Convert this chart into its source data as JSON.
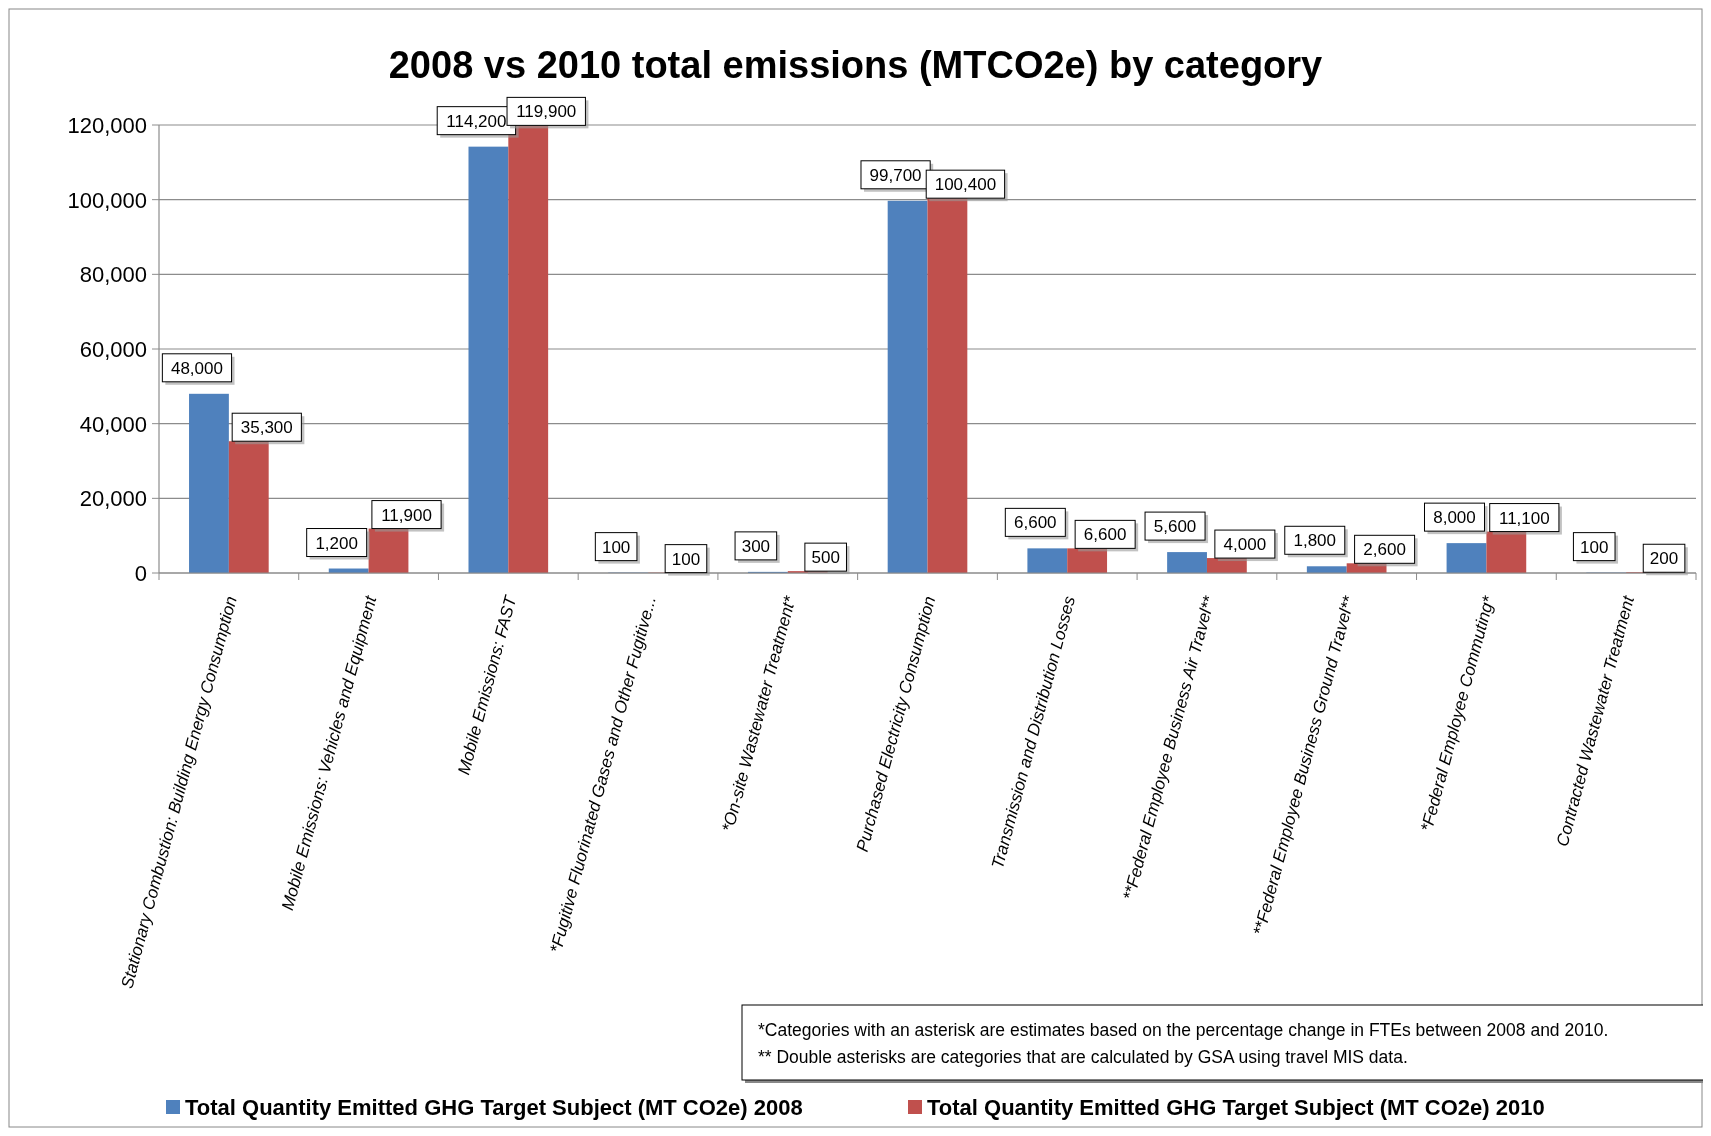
{
  "chart_data": {
    "type": "bar",
    "title": "2008 vs 2010 total emissions (MTCO2e) by category",
    "categories": [
      "Stationary Combustion: Building Energy Consumption",
      "Mobile Emissions: Vehicles and Equipment",
      "Mobile Emissions: FAST",
      "*Fugitive Fluorinated Gases and Other Fugitive...",
      "*On-site Wastewater Treatment*",
      "Purchased Electricity Consumption",
      "Transmission and Distribution Losses",
      "**Federal Employee Business Air Travel**",
      "**Federal Employee Business Ground Travel**",
      "*Federal Employee Commuting*",
      "Contracted Wastewater Treatment"
    ],
    "series": [
      {
        "name": "Total Quantity Emitted GHG Target Subject (MT CO2e) 2008",
        "color": "#4f81bd",
        "values": [
          48000,
          1200,
          114200,
          100,
          300,
          99700,
          6600,
          5600,
          1800,
          8000,
          100
        ],
        "value_labels": [
          "48,000",
          "1,200",
          "114,200",
          "100",
          "300",
          "99,700",
          "6,600",
          "5,600",
          "1,800",
          "8,000",
          "100"
        ]
      },
      {
        "name": "Total Quantity Emitted GHG Target Subject (MT CO2e) 2010",
        "color": "#c0504d",
        "values": [
          35300,
          11900,
          119900,
          100,
          500,
          100400,
          6600,
          4000,
          2600,
          11100,
          200
        ],
        "value_labels": [
          "35,300",
          "11,900",
          "119,900",
          "100",
          "500",
          "100,400",
          "6,600",
          "4,000",
          "2,600",
          "11,100",
          "200"
        ]
      }
    ],
    "ylim": [
      0,
      120000
    ],
    "yticks": [
      0,
      {
        "value": 20000,
        "label": "20,000"
      },
      {
        "value": 40000,
        "label": "40,000"
      },
      {
        "value": 60000,
        "label": "60,000"
      },
      {
        "value": 80000,
        "label": "80,000"
      },
      {
        "value": 100000,
        "label": "100,000"
      },
      {
        "value": 120000,
        "label": "120,000"
      }
    ],
    "grid": "y",
    "legend": "bottom",
    "annotations": [
      "*Categories with an asterisk are estimates based on the percentage change in FTEs between 2008 and 2010.",
      "** Double asterisks are categories that are calculated by GSA using travel MIS data."
    ]
  }
}
